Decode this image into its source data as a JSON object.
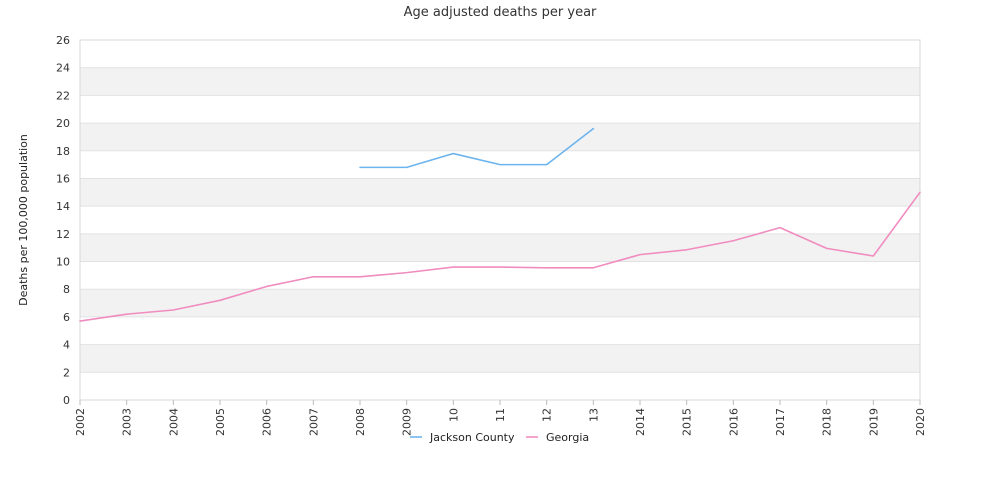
{
  "chart_data": {
    "type": "line",
    "title": "Age adjusted deaths per year",
    "xlabel": "",
    "ylabel": "Deaths per 100,000 population",
    "x": [
      "2002",
      "2003",
      "2004",
      "2005",
      "2006",
      "2007",
      "2008",
      "2009",
      "2010",
      "2011",
      "2012",
      "2013",
      "2014",
      "2015",
      "2016",
      "2017",
      "2018",
      "2019",
      "2020"
    ],
    "x_tick_labels": [
      "2002",
      "2003",
      "2004",
      "2005",
      "2006",
      "2007",
      "2008",
      "2009",
      "10",
      "11",
      "12",
      "13",
      "2014",
      "2015",
      "2016",
      "2017",
      "2018",
      "2019",
      "2020"
    ],
    "ylim": [
      0,
      26
    ],
    "y_ticks": [
      0,
      2,
      4,
      6,
      8,
      10,
      12,
      14,
      16,
      18,
      20,
      22,
      24,
      26
    ],
    "grid": true,
    "legend_position": "bottom-center",
    "series": [
      {
        "name": "Jackson County",
        "color": "#6cb4ee",
        "values": [
          null,
          null,
          null,
          null,
          null,
          null,
          16.8,
          16.8,
          17.8,
          17.0,
          17.0,
          19.6,
          null,
          null,
          null,
          null,
          null,
          null,
          null
        ]
      },
      {
        "name": "Georgia",
        "color": "#f08cbf",
        "values": [
          5.7,
          6.2,
          6.5,
          7.2,
          8.2,
          8.9,
          8.9,
          9.2,
          9.6,
          9.6,
          9.55,
          9.55,
          10.5,
          10.85,
          11.5,
          12.45,
          10.95,
          10.4,
          15.0
        ]
      }
    ]
  }
}
